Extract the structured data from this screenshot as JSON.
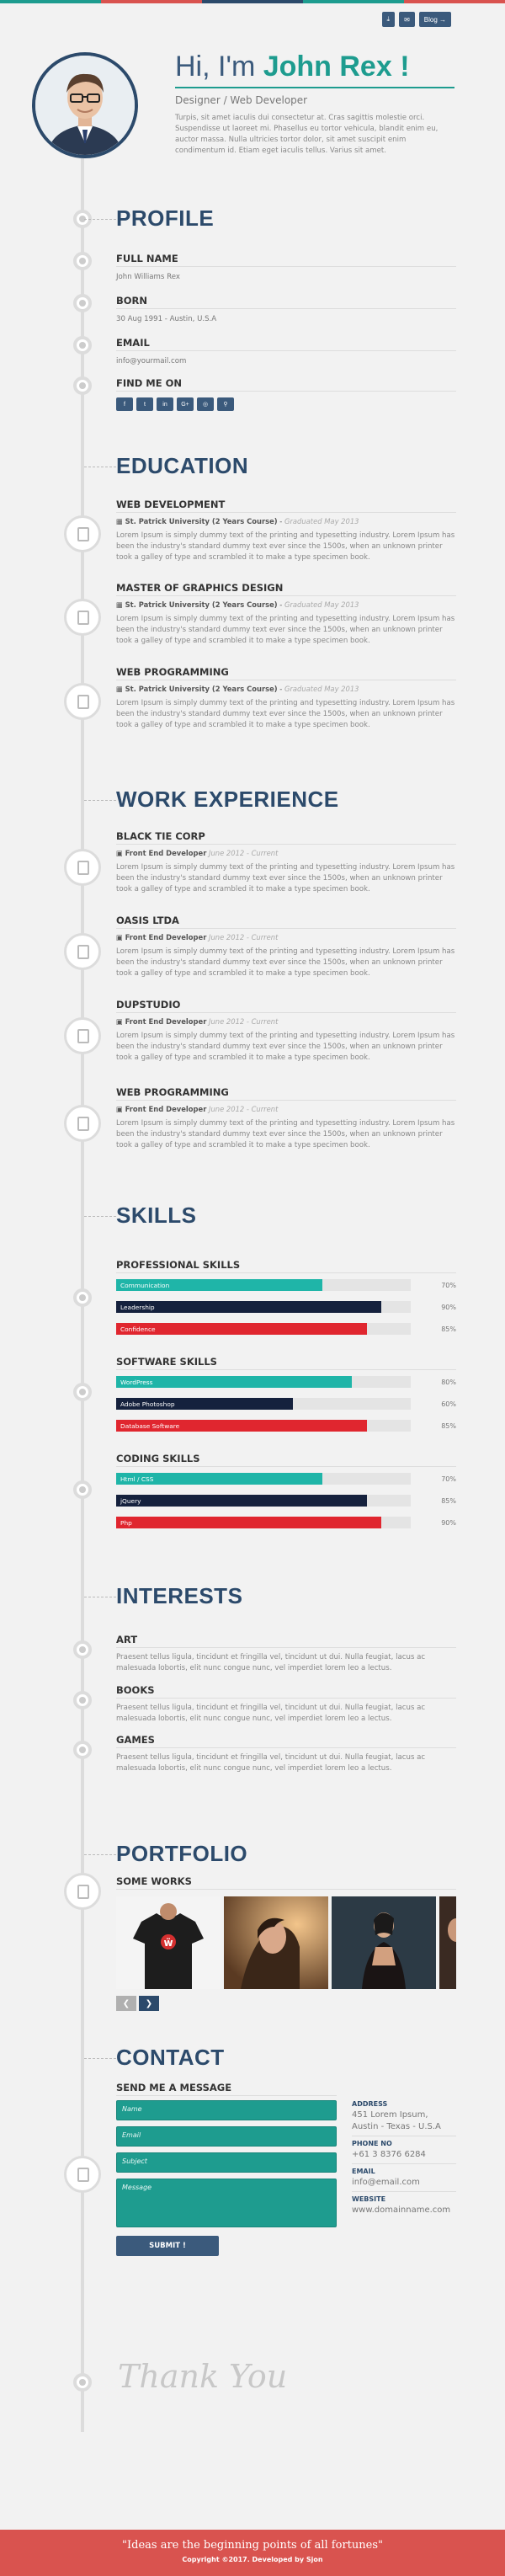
{
  "header": {
    "buttons": {
      "download": "⤓",
      "email": "✉",
      "blog": "Blog →"
    },
    "greeting": "Hi, I'm",
    "name": "John Rex !",
    "role": "Designer / Web Developer",
    "intro": "Turpis, sit amet iaculis dui consectetur at. Cras sagittis molestie orci. Suspendisse ut laoreet mi. Phasellus eu tortor vehicula, blandit enim eu, auctor massa. Nulla ultricies tortor dolor, sit amet suscipit enim condimentum id. Etiam eget iaculis tellus. Varius sit amet."
  },
  "profile": {
    "title": "PROFILE",
    "full_name_label": "FULL NAME",
    "full_name": "John Williams Rex",
    "born_label": "BORN",
    "born": "30 Aug 1991 - Austin, U.S.A",
    "email_label": "EMAIL",
    "email": "info@yourmail.com",
    "find_label": "FIND ME ON",
    "social": [
      "f",
      "t",
      "in",
      "G+",
      "◎",
      "⚲"
    ]
  },
  "education": {
    "title": "EDUCATION",
    "items": [
      {
        "title": "WEB DEVELOPMENT",
        "school": "St. Patrick University (2 Years Course)",
        "date": "Graduated May 2013",
        "desc": "Lorem Ipsum is simply dummy text of the printing and typesetting industry. Lorem Ipsum has been the industry's standard dummy text ever since the 1500s, when an unknown printer took a galley of type and scrambled it to make a type specimen book."
      },
      {
        "title": "MASTER OF GRAPHICS DESIGN",
        "school": "St. Patrick University (2 Years Course)",
        "date": "Graduated May 2013",
        "desc": "Lorem Ipsum is simply dummy text of the printing and typesetting industry. Lorem Ipsum has been the industry's standard dummy text ever since the 1500s, when an unknown printer took a galley of type and scrambled it to make a type specimen book."
      },
      {
        "title": "WEB PROGRAMMING",
        "school": "St. Patrick University (2 Years Course)",
        "date": "Graduated May 2013",
        "desc": "Lorem Ipsum is simply dummy text of the printing and typesetting industry. Lorem Ipsum has been the industry's standard dummy text ever since the 1500s, when an unknown printer took a galley of type and scrambled it to make a type specimen book."
      }
    ]
  },
  "work": {
    "title": "WORK EXPERIENCE",
    "items": [
      {
        "title": "BLACK TIE CORP",
        "role": "Front End Developer",
        "date": "June 2012 - Current",
        "desc": "Lorem Ipsum is simply dummy text of the printing and typesetting industry. Lorem Ipsum has been the industry's standard dummy text ever since the 1500s, when an unknown printer took a galley of type and scrambled it to make a type specimen book."
      },
      {
        "title": "OASIS LTDA",
        "role": "Front End Developer",
        "date": "June 2012 - Current",
        "desc": "Lorem Ipsum is simply dummy text of the printing and typesetting industry. Lorem Ipsum has been the industry's standard dummy text ever since the 1500s, when an unknown printer took a galley of type and scrambled it to make a type specimen book."
      },
      {
        "title": "DUPSTUDIO",
        "role": "Front End Developer",
        "date": "June 2012 - Current",
        "desc": "Lorem Ipsum is simply dummy text of the printing and typesetting industry. Lorem Ipsum has been the industry's standard dummy text ever since the 1500s, when an unknown printer took a galley of type and scrambled it to make a type specimen book."
      },
      {
        "title": "WEB PROGRAMMING",
        "role": "Front End Developer",
        "date": "June 2012 - Current",
        "desc": "Lorem Ipsum is simply dummy text of the printing and typesetting industry. Lorem Ipsum has been the industry's standard dummy text ever since the 1500s, when an unknown printer took a galley of type and scrambled it to make a type specimen book."
      }
    ]
  },
  "skills": {
    "title": "SKILLS",
    "groups": [
      {
        "title": "PROFESSIONAL SKILLS",
        "items": [
          {
            "name": "Communication",
            "pct": 70,
            "pct_label": "70%",
            "color": "#1fb5a8"
          },
          {
            "name": "Leadership",
            "pct": 90,
            "pct_label": "90%",
            "color": "#15213d"
          },
          {
            "name": "Confidence",
            "pct": 85,
            "pct_label": "85%",
            "color": "#e0262f"
          }
        ]
      },
      {
        "title": "SOFTWARE SKILLS",
        "items": [
          {
            "name": "WordPress",
            "pct": 80,
            "pct_label": "80%",
            "color": "#1fb5a8"
          },
          {
            "name": "Adobe Photoshop",
            "pct": 60,
            "pct_label": "60%",
            "color": "#15213d"
          },
          {
            "name": "Database Software",
            "pct": 85,
            "pct_label": "85%",
            "color": "#e0262f"
          }
        ]
      },
      {
        "title": "CODING SKILLS",
        "items": [
          {
            "name": "Html / CSS",
            "pct": 70,
            "pct_label": "70%",
            "color": "#1fb5a8"
          },
          {
            "name": "jQuery",
            "pct": 85,
            "pct_label": "85%",
            "color": "#15213d"
          },
          {
            "name": "Php",
            "pct": 90,
            "pct_label": "90%",
            "color": "#e0262f"
          }
        ]
      }
    ]
  },
  "interests": {
    "title": "INTERESTS",
    "items": [
      {
        "title": "ART",
        "desc": "Praesent tellus ligula, tincidunt et fringilla vel, tincidunt ut dui. Nulla feugiat, lacus ac malesuada lobortis, elit nunc congue nunc, vel imperdiet lorem leo a lectus."
      },
      {
        "title": "BOOKS",
        "desc": "Praesent tellus ligula, tincidunt et fringilla vel, tincidunt ut dui. Nulla feugiat, lacus ac malesuada lobortis, elit nunc congue nunc, vel imperdiet lorem leo a lectus."
      },
      {
        "title": "GAMES",
        "desc": "Praesent tellus ligula, tincidunt et fringilla vel, tincidunt ut dui. Nulla feugiat, lacus ac malesuada lobortis, elit nunc congue nunc, vel imperdiet lorem leo a lectus."
      }
    ]
  },
  "portfolio": {
    "title": "PORTFOLIO",
    "subtitle": "SOME WORKS",
    "prev": "❮",
    "next": "❯"
  },
  "contact": {
    "title": "CONTACT",
    "form_title": "SEND ME A MESSAGE",
    "name_ph": "Name",
    "email_ph": "Email",
    "subject_ph": "Subject",
    "message_ph": "Message",
    "submit": "SUBMIT !",
    "address_label": "ADDRESS",
    "address": "451 Lorem Ipsum, Austin - Texas - U.S.A",
    "phone_label": "PHONE NO",
    "phone": "+61 3 8376 6284",
    "email_label": "EMAIL",
    "email": "info@email.com",
    "website_label": "WEBSITE",
    "website": "www.domainname.com"
  },
  "thanks": "Thank You",
  "footer": {
    "quote": "\"Ideas are the beginning points of all fortunes\"",
    "copyright": "Copyright ©2017. Developed by Sjon"
  }
}
